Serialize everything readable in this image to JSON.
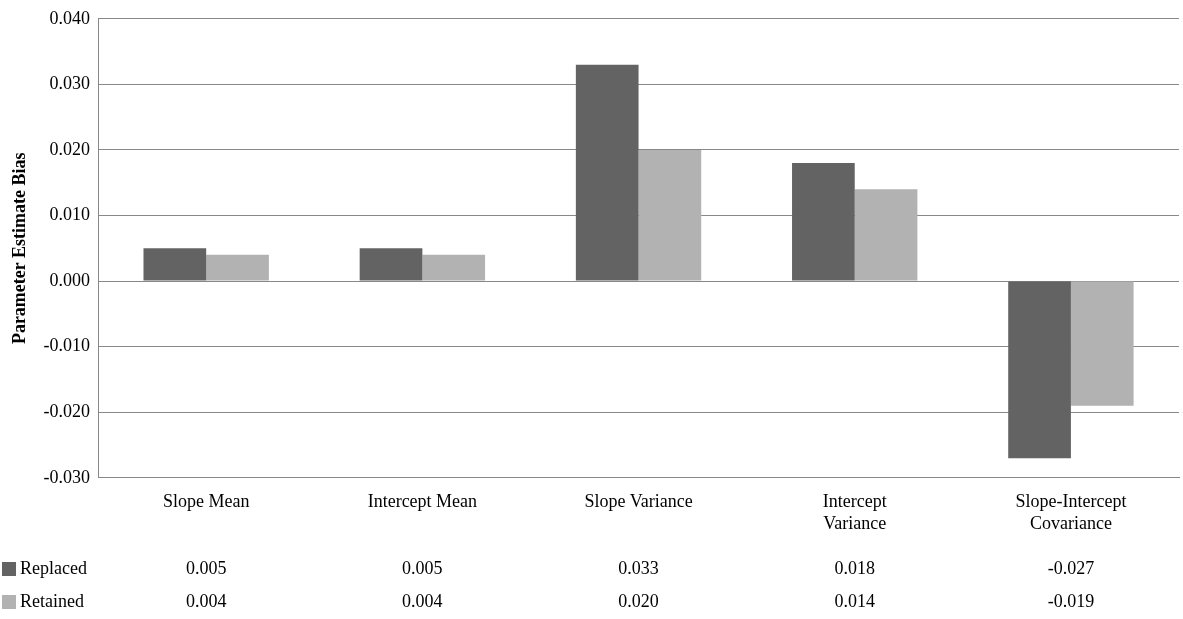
{
  "chart_data": {
    "type": "bar",
    "ylabel": "Parameter Estimate Bias",
    "categories": [
      "Slope Mean",
      "Intercept Mean",
      "Slope Variance",
      "Intercept Variance",
      "Slope-Intercept Covariance"
    ],
    "series": [
      {
        "name": "Replaced",
        "color": "#636363",
        "values": [
          0.005,
          0.005,
          0.033,
          0.018,
          -0.027
        ],
        "value_labels": [
          "0.005",
          "0.005",
          "0.033",
          "0.018",
          "-0.027"
        ]
      },
      {
        "name": "Retained",
        "color": "#b2b2b2",
        "values": [
          0.004,
          0.004,
          0.02,
          0.014,
          -0.019
        ],
        "value_labels": [
          "0.004",
          "0.004",
          "0.020",
          "0.014",
          "-0.019"
        ]
      }
    ],
    "ylim": [
      -0.03,
      0.04
    ],
    "yticks": [
      {
        "value": -0.03,
        "label": "-0.030"
      },
      {
        "value": -0.02,
        "label": "-0.020"
      },
      {
        "value": -0.01,
        "label": "-0.010"
      },
      {
        "value": 0,
        "label": "0.000"
      },
      {
        "value": 0.01,
        "label": "0.010"
      },
      {
        "value": 0.02,
        "label": "0.020"
      },
      {
        "value": 0.03,
        "label": "0.030"
      },
      {
        "value": 0.04,
        "label": "0.040"
      }
    ],
    "grid": "y",
    "legend": "bottom"
  }
}
